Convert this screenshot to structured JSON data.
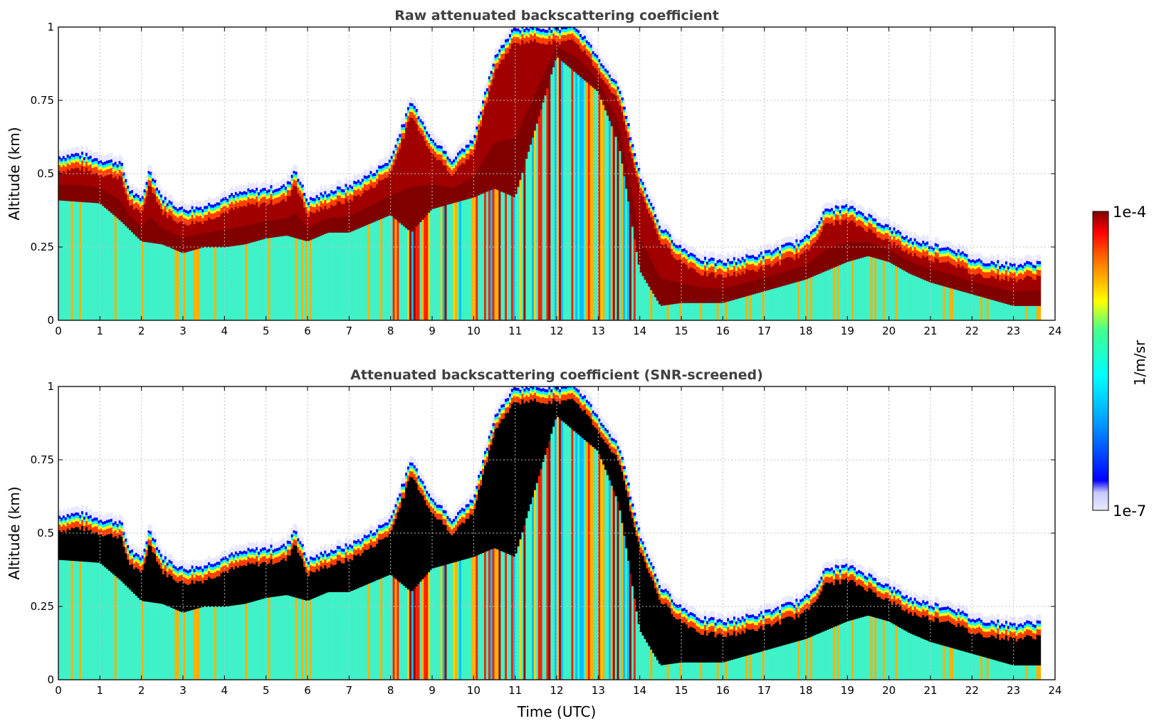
{
  "colors": {
    "jet": [
      "#00008f",
      "#0000ff",
      "#00ffff",
      "#ffff00",
      "#ff0000",
      "#800000"
    ],
    "low": "#e8e8ff",
    "screened": "#000000",
    "grid": "#c0c0c0"
  },
  "colorbar": {
    "label": "1/m/sr",
    "max_label": "1e-4",
    "min_label": "1e-7",
    "scale": "log",
    "range": [
      1e-07,
      0.0001
    ]
  },
  "chart_data": [
    {
      "type": "heatmap",
      "title": "Raw attenuated backscattering coefficient",
      "xlabel": "",
      "ylabel": "Altitude (km)",
      "xlim": [
        0,
        24
      ],
      "ylim": [
        0,
        1
      ],
      "xticks": [
        "0",
        "1",
        "2",
        "3",
        "4",
        "5",
        "6",
        "7",
        "8",
        "9",
        "10",
        "11",
        "12",
        "13",
        "14",
        "15",
        "16",
        "17",
        "18",
        "19",
        "20",
        "21",
        "22",
        "23",
        "24"
      ],
      "yticks": [
        "0",
        "0.25",
        "0.5",
        "0.75",
        "1"
      ],
      "grid": true,
      "screened": false,
      "data_end_hour": 23.65,
      "layer_top_km": [
        [
          0,
          0.56
        ],
        [
          0.5,
          0.57
        ],
        [
          1,
          0.55
        ],
        [
          1.5,
          0.54
        ],
        [
          1.7,
          0.45
        ],
        [
          2,
          0.41
        ],
        [
          2.2,
          0.52
        ],
        [
          2.5,
          0.42
        ],
        [
          3,
          0.38
        ],
        [
          3.5,
          0.39
        ],
        [
          4,
          0.42
        ],
        [
          4.5,
          0.44
        ],
        [
          5,
          0.45
        ],
        [
          5.5,
          0.46
        ],
        [
          5.7,
          0.52
        ],
        [
          6,
          0.41
        ],
        [
          6.5,
          0.44
        ],
        [
          7,
          0.46
        ],
        [
          7.5,
          0.5
        ],
        [
          8,
          0.55
        ],
        [
          8.5,
          0.75
        ],
        [
          9,
          0.62
        ],
        [
          9.5,
          0.55
        ],
        [
          10,
          0.62
        ],
        [
          10.5,
          0.9
        ],
        [
          11,
          1
        ],
        [
          11.5,
          1
        ],
        [
          12,
          1
        ],
        [
          12.5,
          1
        ],
        [
          13,
          0.9
        ],
        [
          13.5,
          0.8
        ],
        [
          14,
          0.5
        ],
        [
          14.5,
          0.32
        ],
        [
          15,
          0.25
        ],
        [
          15.5,
          0.21
        ],
        [
          16,
          0.2
        ],
        [
          17,
          0.23
        ],
        [
          18,
          0.28
        ],
        [
          18.5,
          0.38
        ],
        [
          19,
          0.39
        ],
        [
          19.5,
          0.36
        ],
        [
          20,
          0.32
        ],
        [
          20.5,
          0.28
        ],
        [
          21,
          0.26
        ],
        [
          21.5,
          0.25
        ],
        [
          22,
          0.21
        ],
        [
          22.5,
          0.2
        ],
        [
          23,
          0.19
        ],
        [
          23.65,
          0.2
        ]
      ],
      "layer_bottom_km": [
        [
          0,
          0.41
        ],
        [
          1,
          0.4
        ],
        [
          1.5,
          0.34
        ],
        [
          2,
          0.27
        ],
        [
          2.5,
          0.26
        ],
        [
          3,
          0.23
        ],
        [
          3.5,
          0.25
        ],
        [
          4,
          0.25
        ],
        [
          4.5,
          0.26
        ],
        [
          5,
          0.28
        ],
        [
          5.5,
          0.29
        ],
        [
          6,
          0.27
        ],
        [
          6.5,
          0.3
        ],
        [
          7,
          0.3
        ],
        [
          7.5,
          0.33
        ],
        [
          8,
          0.36
        ],
        [
          8.5,
          0.3
        ],
        [
          9,
          0.38
        ],
        [
          9.5,
          0.4
        ],
        [
          10,
          0.42
        ],
        [
          10.5,
          0.45
        ],
        [
          11,
          0.42
        ],
        [
          12,
          0.9
        ],
        [
          13,
          0.78
        ],
        [
          13.5,
          0.6
        ],
        [
          14,
          0.17
        ],
        [
          14.5,
          0.05
        ],
        [
          15,
          0.06
        ],
        [
          16,
          0.06
        ],
        [
          17,
          0.1
        ],
        [
          18,
          0.14
        ],
        [
          18.5,
          0.17
        ],
        [
          19,
          0.2
        ],
        [
          19.5,
          0.22
        ],
        [
          20,
          0.2
        ],
        [
          20.5,
          0.16
        ],
        [
          21,
          0.13
        ],
        [
          22,
          0.09
        ],
        [
          23,
          0.05
        ],
        [
          23.65,
          0.05
        ]
      ]
    },
    {
      "type": "heatmap",
      "title": "Attenuated backscattering coefficient (SNR-screened)",
      "xlabel": "Time (UTC)",
      "ylabel": "Altitude (km)",
      "xlim": [
        0,
        24
      ],
      "ylim": [
        0,
        1
      ],
      "xticks": [
        "0",
        "1",
        "2",
        "3",
        "4",
        "5",
        "6",
        "7",
        "8",
        "9",
        "10",
        "11",
        "12",
        "13",
        "14",
        "15",
        "16",
        "17",
        "18",
        "19",
        "20",
        "21",
        "22",
        "23",
        "24"
      ],
      "yticks": [
        "0",
        "0.25",
        "0.5",
        "0.75",
        "1"
      ],
      "grid": true,
      "screened": true,
      "data_end_hour": 23.65
    }
  ]
}
